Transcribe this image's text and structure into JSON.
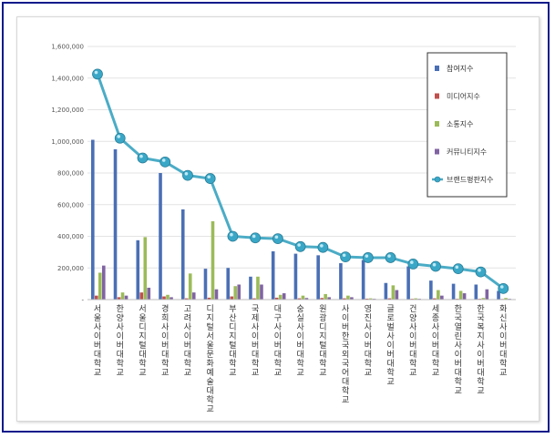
{
  "chart_data": {
    "type": "bar",
    "title": "",
    "xlabel": "",
    "ylabel": "",
    "ylim": [
      0,
      1600000
    ],
    "yticks": [
      "-",
      "200,000",
      "400,000",
      "600,000",
      "800,000",
      "1,000,000",
      "1,200,000",
      "1,400,000",
      "1,600,000"
    ],
    "grid": true,
    "legend_position": "right",
    "categories": [
      "서울사이버대학교",
      "한양사이버대학교",
      "서울디지털대학교",
      "경희사이버대학교",
      "고려사이버대학교",
      "디지털서울문화예술대학교",
      "부산디지털대학교",
      "국제사이버대학교",
      "대구사이버대학교",
      "숭실사이버대학교",
      "원광디지털대학교",
      "사이버한국외국어대학교",
      "영진사이버대학교",
      "글로벌사이버대학교",
      "건양사이버대학교",
      "세종사이버대학교",
      "한국열린사이버대학교",
      "한국복지사이버대학교",
      "화신사이버대학교"
    ],
    "series": [
      {
        "name": "참여지수",
        "kind": "bar",
        "color": "#4a6fb5",
        "values": [
          1010000,
          950000,
          375000,
          800000,
          570000,
          195000,
          200000,
          145000,
          305000,
          290000,
          280000,
          230000,
          250000,
          105000,
          210000,
          120000,
          100000,
          95000,
          55000
        ]
      },
      {
        "name": "미디어지수",
        "kind": "bar",
        "color": "#c0504d",
        "values": [
          25000,
          15000,
          45000,
          20000,
          8000,
          12000,
          20000,
          8000,
          12000,
          8000,
          10000,
          8000,
          6000,
          8000,
          5000,
          8000,
          5000,
          5000,
          4000
        ]
      },
      {
        "name": "소통지수",
        "kind": "bar",
        "color": "#9bbb59",
        "values": [
          170000,
          45000,
          395000,
          30000,
          165000,
          495000,
          85000,
          145000,
          30000,
          25000,
          35000,
          25000,
          8000,
          90000,
          8000,
          60000,
          55000,
          10000,
          10000
        ]
      },
      {
        "name": "커뮤니티지수",
        "kind": "bar",
        "color": "#8064a2",
        "values": [
          215000,
          25000,
          75000,
          15000,
          45000,
          65000,
          95000,
          95000,
          40000,
          10000,
          15000,
          15000,
          5000,
          60000,
          5000,
          25000,
          40000,
          65000,
          5000
        ]
      },
      {
        "name": "브랜드평판지수",
        "kind": "line",
        "color": "#4bacc6",
        "values": [
          1425000,
          1020000,
          895000,
          870000,
          785000,
          765000,
          400000,
          390000,
          385000,
          335000,
          330000,
          270000,
          265000,
          265000,
          225000,
          210000,
          195000,
          175000,
          70000
        ]
      }
    ]
  }
}
